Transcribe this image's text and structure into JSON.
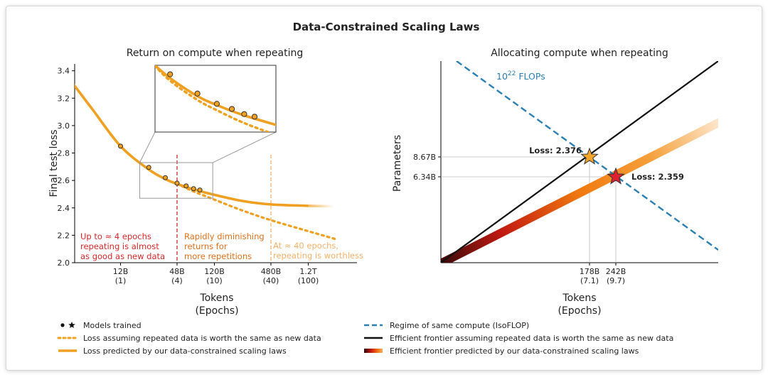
{
  "title": "Data-Constrained Scaling Laws",
  "colors": {
    "orange": "#f0a020",
    "red": "#d62728",
    "dark_orange": "#e0701a",
    "light_orange": "#f5b26b",
    "blue": "#2a7fb5",
    "black": "#111111",
    "star_orange": "#f3a629",
    "star_red": "#e02030"
  },
  "chart_data": [
    {
      "type": "line",
      "title": "Return on compute when repeating",
      "xlabel": "Tokens\n(Epochs)",
      "xlabel_line1": "Tokens",
      "xlabel_line2": "(Epochs)",
      "ylabel": "Final test loss",
      "ylim": [
        2.0,
        3.45
      ],
      "y_ticks": [
        "2.0",
        "2.2",
        "2.4",
        "2.6",
        "2.8",
        "3.0",
        "3.2",
        "3.4"
      ],
      "y_tick_values": [
        2.0,
        2.2,
        2.4,
        2.6,
        2.8,
        3.0,
        3.2,
        3.4
      ],
      "x_ticks": [
        {
          "top": "12B",
          "bottom": "(1)"
        },
        {
          "top": "48B",
          "bottom": "(4)"
        },
        {
          "top": "120B",
          "bottom": "(10)"
        },
        {
          "top": "480B",
          "bottom": "(40)"
        },
        {
          "top": "1.2T",
          "bottom": "(100)"
        }
      ],
      "series": [
        {
          "name": "Loss predicted by our data-constrained scaling laws",
          "style": "solid",
          "x_epochs": [
            0.3,
            0.5,
            1,
            2,
            3,
            4,
            6,
            10,
            20,
            40,
            100,
            200
          ],
          "y": [
            3.32,
            3.12,
            2.85,
            2.68,
            2.61,
            2.575,
            2.535,
            2.495,
            2.45,
            2.425,
            2.415,
            2.41
          ]
        },
        {
          "name": "Loss assuming repeated data is worth the same as new data",
          "style": "dotted",
          "x_epochs": [
            4,
            6,
            10,
            20,
            40,
            100,
            200
          ],
          "y": [
            2.575,
            2.52,
            2.46,
            2.38,
            2.31,
            2.23,
            2.17
          ]
        }
      ],
      "models_trained": [
        {
          "x_epochs": 1,
          "y": 2.85
        },
        {
          "x_epochs": 2,
          "y": 2.695
        },
        {
          "x_epochs": 3,
          "y": 2.62
        },
        {
          "x_epochs": 4,
          "y": 2.58
        },
        {
          "x_epochs": 5,
          "y": 2.56
        },
        {
          "x_epochs": 6,
          "y": 2.54
        },
        {
          "x_epochs": 7,
          "y": 2.53
        }
      ],
      "vlines": [
        {
          "x_epochs": 4,
          "color": "red"
        },
        {
          "x_epochs": 40,
          "color": "light_orange"
        }
      ],
      "annotations": [
        {
          "lines": [
            "Up to ≈ 4 epochs",
            "repeating is almost",
            "as good as new data"
          ],
          "color": "red"
        },
        {
          "lines": [
            "Rapidly diminishing",
            "returns for",
            "more repetitions"
          ],
          "color": "dark_orange"
        },
        {
          "lines": [
            "At ≈ 40 epochs,",
            "repeating is worthless"
          ],
          "color": "light_orange"
        }
      ]
    },
    {
      "type": "line",
      "title": "Allocating compute when repeating",
      "xlabel": "Tokens\n(Epochs)",
      "xlabel_line1": "Tokens",
      "xlabel_line2": "(Epochs)",
      "ylabel": "Parameters",
      "y_ticks": [
        "8.67B",
        "6.34B"
      ],
      "y_tick_values": [
        8.67,
        6.34
      ],
      "x_ticks": [
        {
          "top": "178B",
          "bottom": "(7.1)"
        },
        {
          "top": "242B",
          "bottom": "(9.7)"
        }
      ],
      "isoflop_label_base": "10",
      "isoflop_label_exp": "22",
      "isoflop_label_unit": " FLOPs",
      "points": [
        {
          "label": "Loss: 2.376",
          "tokens_b": 178,
          "params_b": 8.67,
          "marker": "star",
          "color": "star_orange"
        },
        {
          "label": "Loss: 2.359",
          "tokens_b": 242,
          "params_b": 6.34,
          "marker": "star",
          "color": "star_red"
        }
      ],
      "series": [
        {
          "name": "Regime of same compute (IsoFLOP)",
          "style": "dashed"
        },
        {
          "name": "Efficient frontier assuming repeated data is worth the same as new data",
          "style": "solid"
        },
        {
          "name": "Efficient frontier predicted by our data-constrained scaling laws",
          "style": "gradient"
        }
      ]
    }
  ],
  "legend": {
    "left": [
      {
        "label": "Models trained",
        "marker": "dot-star"
      },
      {
        "label": "Loss assuming repeated data is worth the same as new data",
        "marker": "dotted"
      },
      {
        "label": "Loss predicted by our data-constrained scaling laws",
        "marker": "solid"
      }
    ],
    "right": [
      {
        "label": "Regime of same compute (IsoFLOP)",
        "marker": "dashed"
      },
      {
        "label": "Efficient frontier assuming repeated data is worth the same as new data",
        "marker": "black"
      },
      {
        "label": "Efficient frontier predicted by our data-constrained scaling laws",
        "marker": "gradient"
      }
    ]
  }
}
